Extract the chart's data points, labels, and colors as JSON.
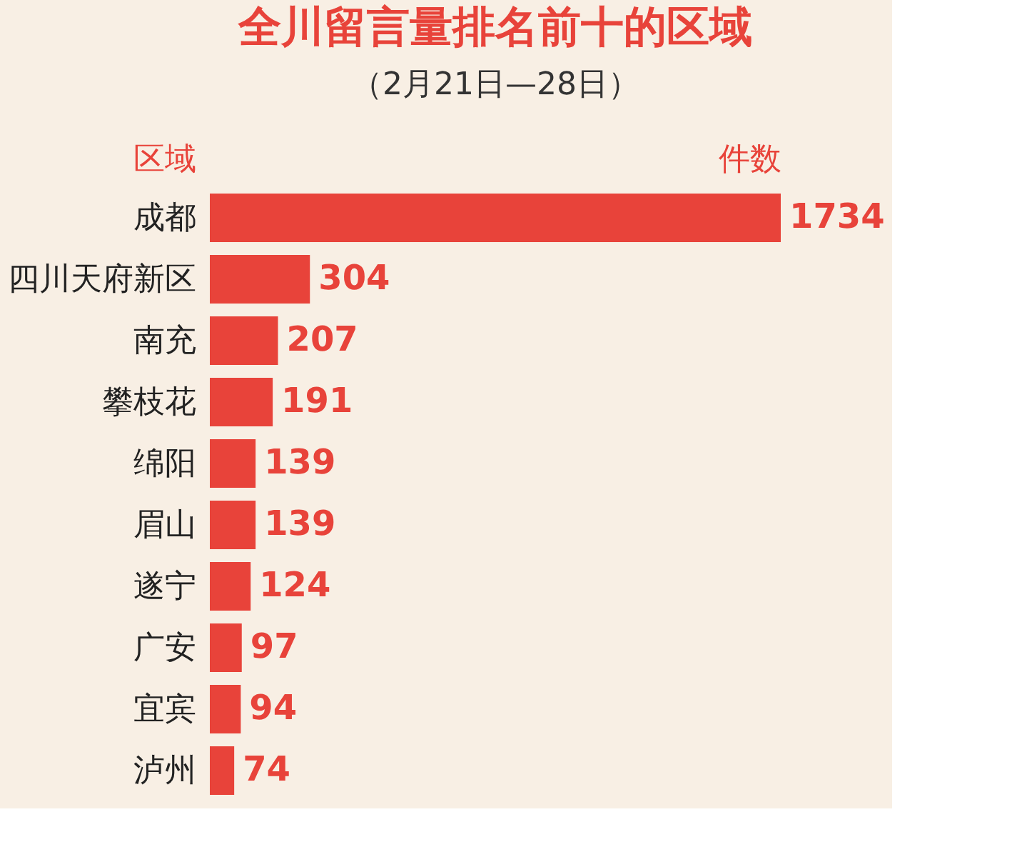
{
  "chart_data": {
    "type": "bar",
    "orientation": "horizontal",
    "title": "全川留言量排名前十的区域",
    "subtitle": "（2月21日—28日）",
    "ylabel": "区域",
    "xlabel": "件数",
    "categories": [
      "成都",
      "四川天府新区",
      "南充",
      "攀枝花",
      "绵阳",
      "眉山",
      "遂宁",
      "广安",
      "宜宾",
      "泸州"
    ],
    "values": [
      1734,
      304,
      207,
      191,
      139,
      139,
      124,
      97,
      94,
      74
    ],
    "color": "#e8433a",
    "data_labels": true,
    "grid": false
  }
}
